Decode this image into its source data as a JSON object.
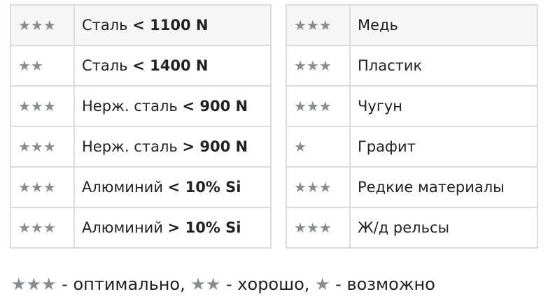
{
  "star_color": "#888d91",
  "left_table": [
    {
      "rating": "★★★",
      "name": "Сталь",
      "spec": "< 1100 N"
    },
    {
      "rating": "★★",
      "name": "Сталь",
      "spec": "< 1400 N"
    },
    {
      "rating": "★★★",
      "name": "Нерж. сталь",
      "spec": "< 900 N"
    },
    {
      "rating": "★★★",
      "name": "Нерж. сталь",
      "spec": "> 900 N"
    },
    {
      "rating": "★★★",
      "name": "Алюминий",
      "spec": "< 10% Si"
    },
    {
      "rating": "★★★",
      "name": "Алюминий",
      "spec": "> 10% Si"
    }
  ],
  "right_table": [
    {
      "rating": "★★★",
      "name": "Медь"
    },
    {
      "rating": "★★★",
      "name": "Пластик"
    },
    {
      "rating": "★★★",
      "name": "Чугун"
    },
    {
      "rating": "★",
      "name": "Графит"
    },
    {
      "rating": "★★★",
      "name": "Редкие материалы"
    },
    {
      "rating": "★★★",
      "name": "Ж/д рельсы"
    }
  ],
  "legend": [
    {
      "rating": "★★★",
      "text": " - оптимально, "
    },
    {
      "rating": "★★",
      "text": " - хорошо, "
    },
    {
      "rating": "★",
      "text": " - возможно"
    }
  ]
}
